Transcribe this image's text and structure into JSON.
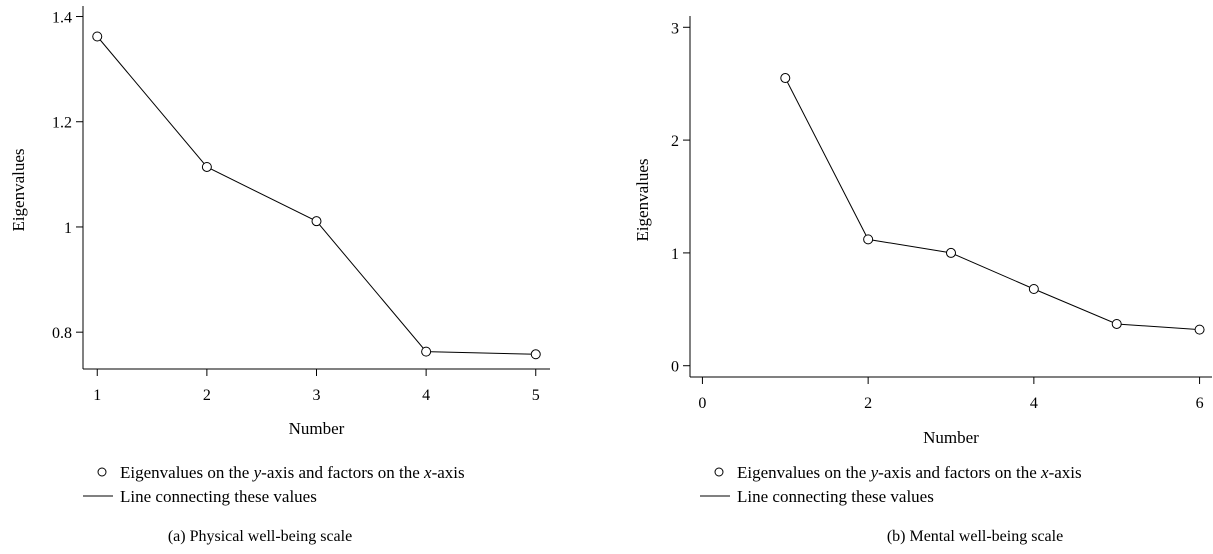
{
  "chart_data": [
    {
      "type": "line",
      "caption": "(a)  Physical well-being scale",
      "xlabel": "Number",
      "ylabel": "Eigenvalues",
      "x": [
        1,
        2,
        3,
        4,
        5
      ],
      "y": [
        1.362,
        1.114,
        1.011,
        0.763,
        0.758
      ],
      "xlim": [
        0.87,
        5.13
      ],
      "ylim": [
        0.73,
        1.42
      ],
      "xticks": [
        1,
        2,
        3,
        4,
        5
      ],
      "xtick_labels": [
        "1",
        "2",
        "3",
        "4",
        "5"
      ],
      "yticks": [
        0.8,
        1.0,
        1.2,
        1.4
      ],
      "ytick_labels": [
        "0.8",
        "1",
        "1.2",
        "1.4"
      ],
      "grid": false,
      "legend": {
        "placement": "bottom",
        "entries": [
          {
            "marker": "circle",
            "label_pre": "Eigenvalues on the ",
            "label_var1": "y",
            "label_mid": "-axis and factors on the ",
            "label_var2": "x",
            "label_post": "-axis"
          },
          {
            "marker": "line",
            "label": "Line connecting these values"
          }
        ]
      }
    },
    {
      "type": "line",
      "caption": "(b)  Mental well-being scale",
      "xlabel": "Number",
      "ylabel": "Eigenvalues",
      "x": [
        1,
        2,
        3,
        4,
        5,
        6
      ],
      "y": [
        2.55,
        1.12,
        1.0,
        0.68,
        0.37,
        0.32
      ],
      "xlim": [
        -0.15,
        6.15
      ],
      "ylim": [
        -0.1,
        3.1
      ],
      "xticks": [
        0,
        2,
        4,
        6
      ],
      "xtick_labels": [
        "0",
        "2",
        "4",
        "6"
      ],
      "yticks": [
        0,
        1,
        2,
        3
      ],
      "ytick_labels": [
        "0",
        "1",
        "2",
        "3"
      ],
      "grid": false,
      "legend": {
        "placement": "bottom",
        "entries": [
          {
            "marker": "circle",
            "label_pre": "Eigenvalues on the ",
            "label_var1": "y",
            "label_mid": "-axis and factors on the ",
            "label_var2": "x",
            "label_post": "-axis"
          },
          {
            "marker": "line",
            "label": "Line connecting these values"
          }
        ]
      }
    }
  ]
}
